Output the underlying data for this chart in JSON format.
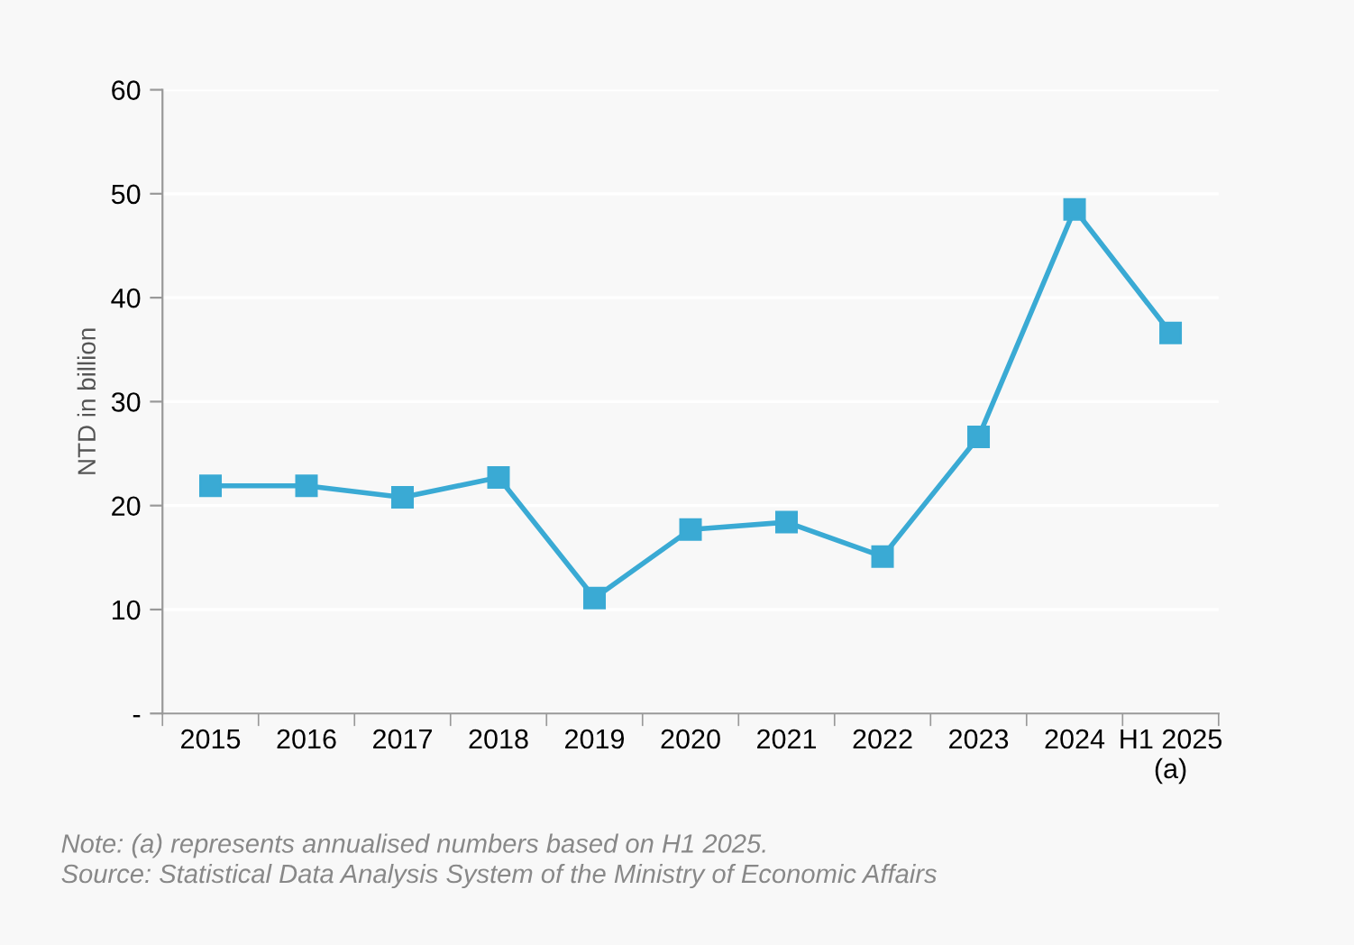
{
  "chart_data": {
    "type": "line",
    "ylabel": "NTD in billion",
    "categories": [
      "2015",
      "2016",
      "2017",
      "2018",
      "2019",
      "2020",
      "2021",
      "2022",
      "2023",
      "2024",
      "H1 2025\n(a)"
    ],
    "series": [
      {
        "color": "#3aaad4",
        "values": [
          21.9,
          21.9,
          20.8,
          22.7,
          11.1,
          17.7,
          18.4,
          15.1,
          26.6,
          48.5,
          36.6
        ]
      }
    ],
    "ylim": [
      0,
      60
    ],
    "yticks": [
      {
        "value": 0,
        "label": "-"
      },
      10,
      20,
      30,
      40,
      50,
      60
    ],
    "grid": "y",
    "marker": "square",
    "line_style": "solid",
    "annotations": [
      "Note: (a) represents annualised numbers based on H1 2025.\nSource: Statistical Data Analysis System of the Ministry of Economic Affairs"
    ]
  }
}
